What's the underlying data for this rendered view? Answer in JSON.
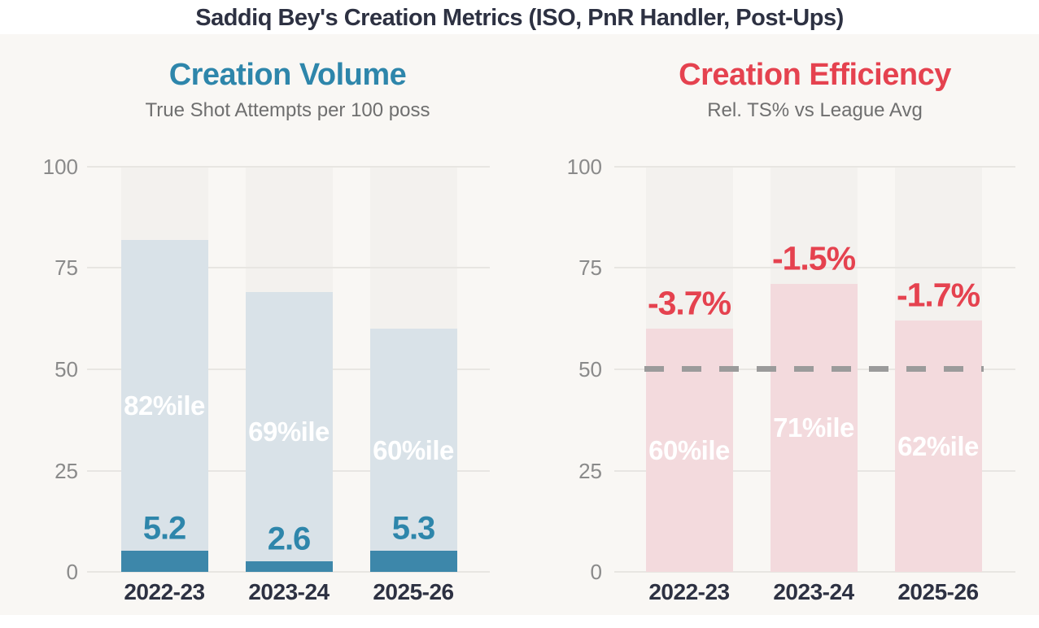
{
  "page": {
    "title": "Saddiq Bey's Creation Metrics (ISO, PnR Handler, Post-Ups)"
  },
  "colors": {
    "page_background": "#f9f7f4",
    "band_background": "#ffffff",
    "column_background": "#f3f1ee",
    "gridline": "#e8e6e2",
    "tick_label": "#8a8a8a",
    "category_label": "#2d3142",
    "figure_title": "#2d3142",
    "subtitle": "#6f6f6f"
  },
  "chart_data": [
    {
      "type": "bar",
      "title": "Creation Volume",
      "subtitle": "True Shot Attempts per 100 poss",
      "categories": [
        "2022-23",
        "2023-24",
        "2025-26"
      ],
      "series": [
        {
          "name": "Creation volume percentile",
          "role": "percentile",
          "values": [
            82,
            69,
            60
          ],
          "labels": [
            "82%ile",
            "69%ile",
            "60%ile"
          ]
        },
        {
          "name": "True shot attempts per 100 possessions",
          "role": "value",
          "values": [
            5.2,
            2.6,
            5.3
          ],
          "labels": [
            "5.2",
            "2.6",
            "5.3"
          ]
        }
      ],
      "ylim": [
        0,
        100
      ],
      "yticks": [
        0,
        25,
        50,
        75,
        100
      ],
      "grid": true,
      "legend": "none",
      "colors": {
        "title": "#2e86ab",
        "percentile_bar": "#d9e2e8",
        "value_bar": "#3d87aa",
        "value_label": "#2e86ab",
        "percentile_label": "#ffffff"
      }
    },
    {
      "type": "bar",
      "title": "Creation Efficiency",
      "subtitle": "Rel. TS% vs League Avg",
      "categories": [
        "2022-23",
        "2023-24",
        "2025-26"
      ],
      "series": [
        {
          "name": "Creation efficiency percentile",
          "role": "percentile",
          "values": [
            60,
            71,
            62
          ],
          "labels": [
            "60%ile",
            "71%ile",
            "62%ile"
          ]
        },
        {
          "name": "Relative TS% vs league average",
          "role": "annotation",
          "values": [
            -3.7,
            -1.5,
            -1.7
          ],
          "labels": [
            "-3.7%",
            "-1.5%",
            "-1.7%"
          ]
        }
      ],
      "reference_line": {
        "value": 50,
        "style": "dashed"
      },
      "ylim": [
        0,
        100
      ],
      "yticks": [
        0,
        25,
        50,
        75,
        100
      ],
      "grid": true,
      "legend": "none",
      "colors": {
        "title": "#e5424f",
        "percentile_bar": "#f3dadd",
        "annotation_label": "#e5424f",
        "percentile_label": "#ffffff",
        "reference_line": "#9b9b9b"
      }
    }
  ]
}
